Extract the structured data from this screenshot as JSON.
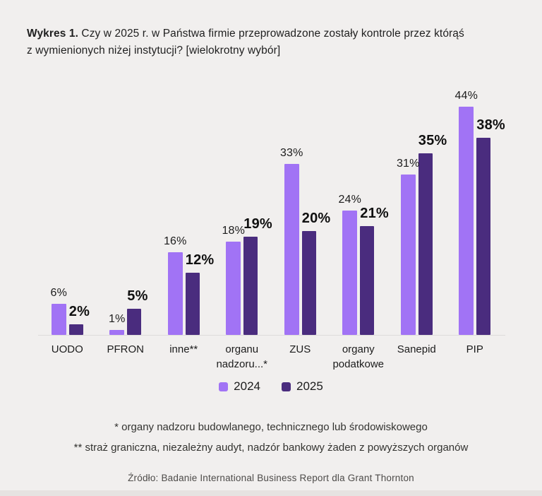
{
  "title": {
    "prefix": "Wykres 1.",
    "line1": " Czy w 2025 r. w Państwa firmie przeprowadzone zostały kontrole przez którąś",
    "line2": "z wymienionych niżej instytucji? [wielokrotny wybór]"
  },
  "chart_data": {
    "type": "bar",
    "categories": [
      "UODO",
      "PFRON",
      "inne**",
      "organu nadzoru...*",
      "ZUS",
      "organy podatkowe",
      "Sanepid",
      "PIP"
    ],
    "series": [
      {
        "name": "2024",
        "color": "#a173f5",
        "values": [
          6,
          1,
          16,
          18,
          33,
          24,
          31,
          44
        ]
      },
      {
        "name": "2025",
        "color": "#4a2c7e",
        "values": [
          2,
          5,
          12,
          19,
          20,
          21,
          35,
          38
        ]
      }
    ],
    "value_suffix": "%",
    "ylim": [
      0,
      45
    ],
    "grid": false,
    "legend_position": "bottom",
    "background": "#f1efee"
  },
  "legend": {
    "items": [
      {
        "label": "2024",
        "color": "#a173f5"
      },
      {
        "label": "2025",
        "color": "#4a2c7e"
      }
    ]
  },
  "footnotes": [
    "* organy nadzoru budowlanego, technicznego lub środowiskowego",
    "** straż graniczna, niezależny audyt, nadzór bankowy żaden z powyższych organów"
  ],
  "source": "Źródło: Badanie International Business Report dla Grant Thornton"
}
